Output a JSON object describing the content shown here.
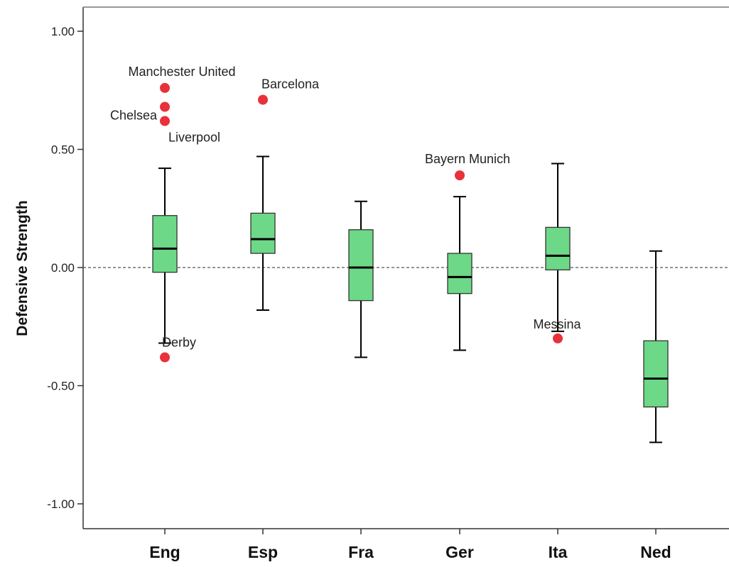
{
  "chart_data": {
    "type": "boxplot",
    "title": "",
    "xlabel": "",
    "ylabel": "Defensive Strength",
    "ylim": [
      -1.1,
      1.1
    ],
    "yticks": [
      1.0,
      0.5,
      0.0,
      -0.5,
      -1.0
    ],
    "ytick_labels": [
      "1.00",
      "0.50",
      "0.00",
      "-0.50",
      "-1.00"
    ],
    "reference_line": 0.0,
    "grid": false,
    "colors": {
      "box_fill": "#6dd887",
      "box_stroke": "#333333",
      "median": "#000000",
      "outlier": "#e8313a",
      "reference_line": "#555555"
    },
    "categories": [
      "Eng",
      "Esp",
      "Fra",
      "Ger",
      "Ita",
      "Ned"
    ],
    "boxes": [
      {
        "category": "Eng",
        "whisker_low": -0.32,
        "q1": -0.02,
        "median": 0.08,
        "q3": 0.22,
        "whisker_high": 0.42
      },
      {
        "category": "Esp",
        "whisker_low": -0.18,
        "q1": 0.06,
        "median": 0.12,
        "q3": 0.23,
        "whisker_high": 0.47
      },
      {
        "category": "Fra",
        "whisker_low": -0.38,
        "q1": -0.14,
        "median": 0.0,
        "q3": 0.16,
        "whisker_high": 0.28
      },
      {
        "category": "Ger",
        "whisker_low": -0.35,
        "q1": -0.11,
        "median": -0.04,
        "q3": 0.06,
        "whisker_high": 0.3
      },
      {
        "category": "Ita",
        "whisker_low": -0.27,
        "q1": -0.01,
        "median": 0.05,
        "q3": 0.17,
        "whisker_high": 0.44
      },
      {
        "category": "Ned",
        "whisker_low": -0.74,
        "q1": -0.59,
        "median": -0.47,
        "q3": -0.31,
        "whisker_high": 0.07
      }
    ],
    "outliers": [
      {
        "category": "Eng",
        "value": 0.76,
        "label": "Manchester United"
      },
      {
        "category": "Eng",
        "value": 0.68,
        "label": "Chelsea"
      },
      {
        "category": "Eng",
        "value": 0.62,
        "label": "Liverpool"
      },
      {
        "category": "Eng",
        "value": -0.38,
        "label": "Derby"
      },
      {
        "category": "Esp",
        "value": 0.71,
        "label": "Barcelona"
      },
      {
        "category": "Ger",
        "value": 0.39,
        "label": "Bayern Munich"
      },
      {
        "category": "Ita",
        "value": -0.3,
        "label": "Messina"
      }
    ]
  }
}
